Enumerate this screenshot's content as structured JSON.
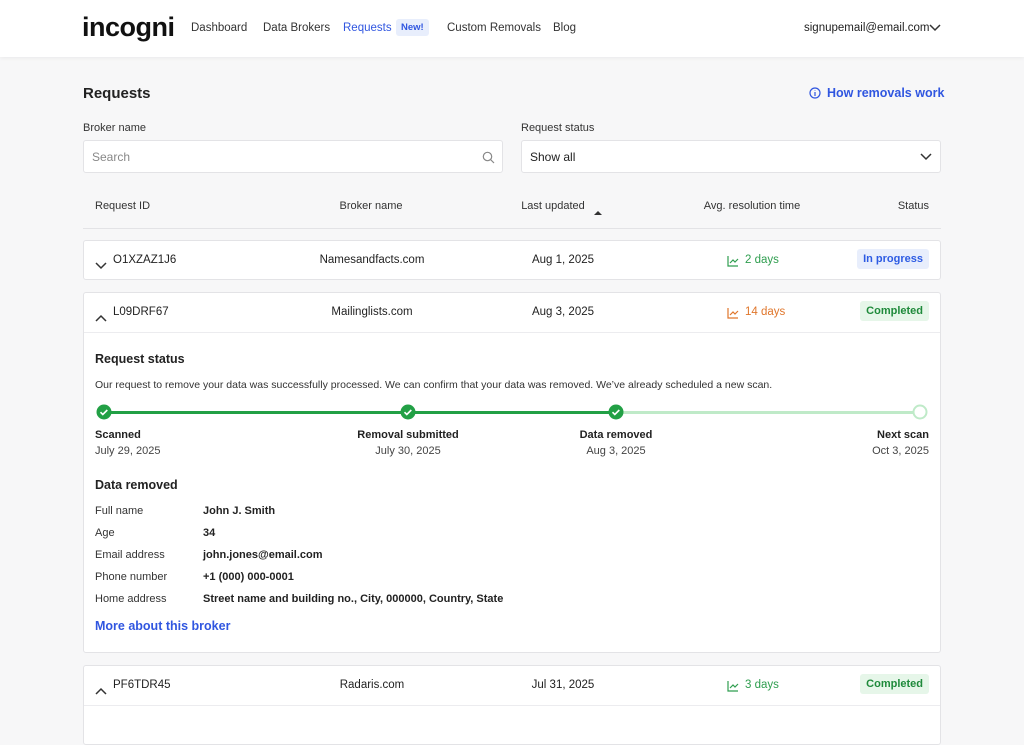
{
  "header": {
    "logo": "incogni",
    "nav": [
      "Dashboard",
      "Data Brokers",
      "Requests",
      "Custom Removals",
      "Blog"
    ],
    "active_nav": 2,
    "badge": "New!",
    "account": "signupemail@email.com"
  },
  "page": {
    "title": "Requests",
    "help_link": "How removals work"
  },
  "filters": {
    "broker_label": "Broker name",
    "broker_placeholder": "Search",
    "status_label": "Request status",
    "status_value": "Show all"
  },
  "table": {
    "columns": [
      "Request ID",
      "Broker name",
      "Last updated",
      "Avg. resolution time",
      "Status"
    ],
    "rows": [
      {
        "id": "O1XZAZ1J6",
        "broker": "Namesandfacts.com",
        "updated": "Aug 1, 2025",
        "resolution": "2 days",
        "resolution_color": "#2f9e4f",
        "status": "In progress",
        "status_color": "#2d5be3",
        "status_bg": "#e8eefc",
        "expanded": false
      },
      {
        "id": "L09DRF67",
        "broker": "Mailinglists.com",
        "updated": "Aug 3, 2025",
        "resolution": "14 days",
        "resolution_color": "#e0762b",
        "status": "Completed",
        "status_color": "#1f8a3b",
        "status_bg": "#e6f6e9",
        "expanded": true
      },
      {
        "id": "PF6TDR45",
        "broker": "Radaris.com",
        "updated": "Jul 31, 2025",
        "resolution": "3 days",
        "resolution_color": "#2f9e4f",
        "status": "Completed",
        "status_color": "#1f8a3b",
        "status_bg": "#e6f6e9",
        "expanded": true
      }
    ]
  },
  "detail": {
    "title": "Request status",
    "message": "Our request to remove your data was successfully processed. We can confirm that your data was removed. We’ve already scheduled a new scan.",
    "steps": [
      {
        "label": "Scanned",
        "date": "July 29, 2025",
        "done": true
      },
      {
        "label": "Removal submitted",
        "date": "July 30, 2025",
        "done": true
      },
      {
        "label": "Data removed",
        "date": "Aug 3, 2025",
        "done": true
      },
      {
        "label": "Next scan",
        "date": "Oct 3, 2025",
        "done": false
      }
    ],
    "data_title": "Data removed",
    "fields": [
      {
        "label": "Full name",
        "value": "John J. Smith"
      },
      {
        "label": "Age",
        "value": "34"
      },
      {
        "label": "Email address",
        "value": "john.jones@email.com"
      },
      {
        "label": "Phone number",
        "value": "+1 (000) 000-0001"
      },
      {
        "label": "Home address",
        "value": "Street name and building no., City, 000000, Country, State"
      }
    ],
    "link": "More about this broker"
  }
}
